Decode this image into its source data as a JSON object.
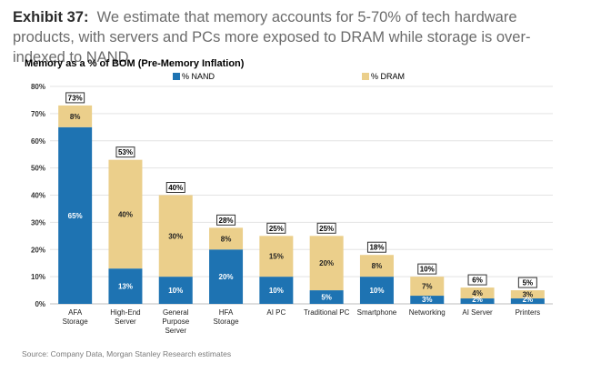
{
  "header": {
    "exhibit_label": "Exhibit 37:",
    "headline": "We estimate that memory accounts for 5-70% of tech hardware products, with servers and PCs more exposed to DRAM while storage is over-indexed to NAND"
  },
  "source": "Source: Company Data, Morgan Stanley Research estimates",
  "chart_data": {
    "type": "bar",
    "stacked": true,
    "title": "Memory as a % of BOM (Pre-Memory Inflation)",
    "categories": [
      [
        "AFA",
        "Storage"
      ],
      [
        "High-End",
        "Server"
      ],
      [
        "General",
        "Purpose",
        "Server"
      ],
      [
        "HFA",
        "Storage"
      ],
      [
        "AI PC"
      ],
      [
        "Traditional PC"
      ],
      [
        "Smartphone"
      ],
      [
        "Networking"
      ],
      [
        "AI Server"
      ],
      [
        "Printers"
      ]
    ],
    "series": [
      {
        "name": "% NAND",
        "color": "#1e73b2",
        "values": [
          65,
          13,
          10,
          20,
          10,
          5,
          10,
          3,
          2,
          2
        ],
        "labels": [
          "65%",
          "13%",
          "10%",
          "20%",
          "10%",
          "5%",
          "10%",
          "3%",
          "2%",
          "2%"
        ]
      },
      {
        "name": "% DRAM",
        "color": "#ebcf8b",
        "values": [
          8,
          40,
          30,
          8,
          15,
          20,
          8,
          7,
          4,
          3
        ],
        "labels": [
          "8%",
          "40%",
          "30%",
          "8%",
          "15%",
          "20%",
          "8%",
          "7%",
          "4%",
          "3%"
        ]
      }
    ],
    "totals": [
      "73%",
      "53%",
      "40%",
      "28%",
      "25%",
      "25%",
      "18%",
      "10%",
      "6%",
      "5%"
    ],
    "ylim": [
      0,
      80
    ],
    "y_ticks": [
      0,
      10,
      20,
      30,
      40,
      50,
      60,
      70,
      80
    ],
    "y_tick_labels": [
      "0%",
      "10%",
      "20%",
      "30%",
      "40%",
      "50%",
      "60%",
      "70%",
      "80%"
    ],
    "grid": true,
    "legend_position": "top"
  }
}
